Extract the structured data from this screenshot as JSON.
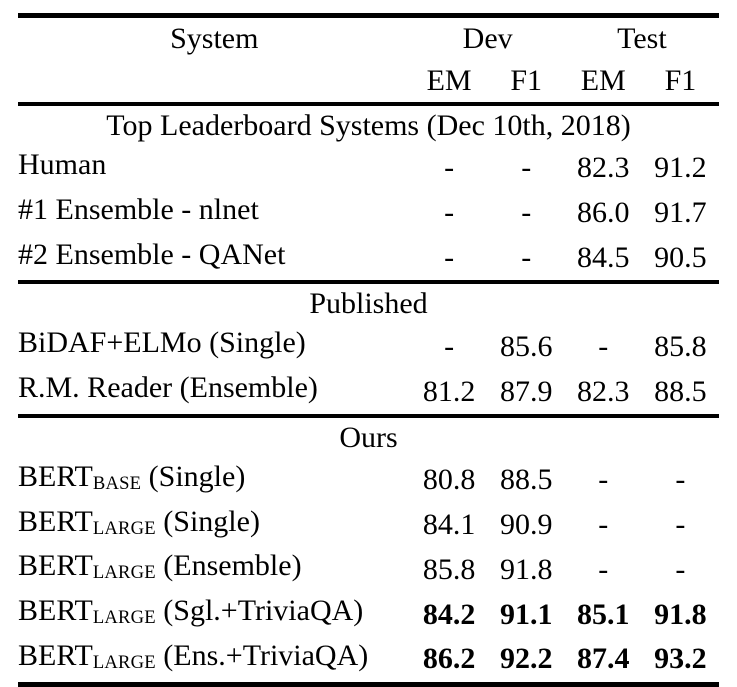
{
  "table": {
    "header": {
      "system": "System",
      "dev": "Dev",
      "test": "Test",
      "metrics": [
        "EM",
        "F1",
        "EM",
        "F1"
      ]
    },
    "sections": [
      {
        "title": "Top Leaderboard Systems (Dec 10th, 2018)",
        "rows": [
          {
            "name": "Human",
            "sub": "",
            "rest": "",
            "values": [
              "-",
              "-",
              "82.3",
              "91.2"
            ],
            "bold": false
          },
          {
            "name": "#1 Ensemble - nlnet",
            "sub": "",
            "rest": "",
            "values": [
              "-",
              "-",
              "86.0",
              "91.7"
            ],
            "bold": false
          },
          {
            "name": "#2 Ensemble - QANet",
            "sub": "",
            "rest": "",
            "values": [
              "-",
              "-",
              "84.5",
              "90.5"
            ],
            "bold": false
          }
        ]
      },
      {
        "title": "Published",
        "rows": [
          {
            "name": "BiDAF+ELMo (Single)",
            "sub": "",
            "rest": "",
            "values": [
              "-",
              "85.6",
              "-",
              "85.8"
            ],
            "bold": false
          },
          {
            "name": "R.M. Reader (Ensemble)",
            "sub": "",
            "rest": "",
            "values": [
              "81.2",
              "87.9",
              "82.3",
              "88.5"
            ],
            "bold": false
          }
        ]
      },
      {
        "title": "Ours",
        "rows": [
          {
            "name": "BERT",
            "sub": "BASE",
            "rest": " (Single)",
            "values": [
              "80.8",
              "88.5",
              "-",
              "-"
            ],
            "bold": false
          },
          {
            "name": "BERT",
            "sub": "LARGE",
            "rest": " (Single)",
            "values": [
              "84.1",
              "90.9",
              "-",
              "-"
            ],
            "bold": false
          },
          {
            "name": "BERT",
            "sub": "LARGE",
            "rest": " (Ensemble)",
            "values": [
              "85.8",
              "91.8",
              "-",
              "-"
            ],
            "bold": false
          },
          {
            "name": "BERT",
            "sub": "LARGE",
            "rest": " (Sgl.+TriviaQA)",
            "values": [
              "84.2",
              "91.1",
              "85.1",
              "91.8"
            ],
            "bold": true
          },
          {
            "name": "BERT",
            "sub": "LARGE",
            "rest": " (Ens.+TriviaQA)",
            "values": [
              "86.2",
              "92.2",
              "87.4",
              "93.2"
            ],
            "bold": true
          }
        ]
      }
    ]
  }
}
